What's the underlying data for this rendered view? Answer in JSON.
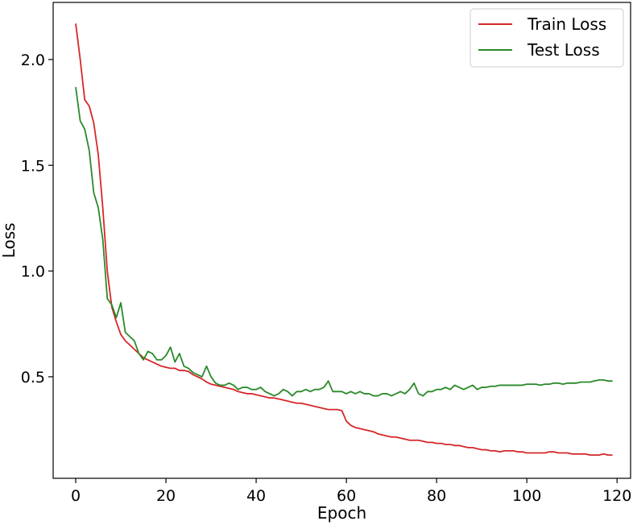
{
  "chart_data": {
    "type": "line",
    "xlabel": "Epoch",
    "ylabel": "Loss",
    "xlim": [
      -5,
      123
    ],
    "ylim": [
      0.02,
      2.27
    ],
    "xticks": [
      0,
      20,
      40,
      60,
      80,
      100,
      120
    ],
    "yticks": [
      0.5,
      1.0,
      1.5,
      2.0
    ],
    "xtick_labels": [
      "0",
      "20",
      "40",
      "60",
      "80",
      "100",
      "120"
    ],
    "ytick_labels": [
      "0.5",
      "1.0",
      "1.5",
      "2.0"
    ],
    "grid": false,
    "legend": {
      "placement": "top-right"
    },
    "series": [
      {
        "name": "Train Loss",
        "color": "#d62728",
        "x": [
          0,
          1,
          2,
          3,
          4,
          5,
          6,
          7,
          8,
          9,
          10,
          11,
          12,
          13,
          14,
          15,
          16,
          17,
          18,
          19,
          20,
          21,
          22,
          23,
          24,
          25,
          26,
          27,
          28,
          29,
          30,
          31,
          32,
          33,
          34,
          35,
          36,
          37,
          38,
          39,
          40,
          41,
          42,
          43,
          44,
          45,
          46,
          47,
          48,
          49,
          50,
          51,
          52,
          53,
          54,
          55,
          56,
          57,
          58,
          59,
          60,
          61,
          62,
          63,
          64,
          65,
          66,
          67,
          68,
          69,
          70,
          71,
          72,
          73,
          74,
          75,
          76,
          77,
          78,
          79,
          80,
          81,
          82,
          83,
          84,
          85,
          86,
          87,
          88,
          89,
          90,
          91,
          92,
          93,
          94,
          95,
          96,
          97,
          98,
          99,
          100,
          101,
          102,
          103,
          104,
          105,
          106,
          107,
          108,
          109,
          110,
          111,
          112,
          113,
          114,
          115,
          116,
          117,
          118,
          119
        ],
        "values": [
          2.17,
          2.0,
          1.81,
          1.78,
          1.7,
          1.55,
          1.3,
          1.0,
          0.83,
          0.76,
          0.7,
          0.67,
          0.65,
          0.63,
          0.61,
          0.59,
          0.58,
          0.57,
          0.56,
          0.55,
          0.545,
          0.54,
          0.54,
          0.53,
          0.53,
          0.525,
          0.51,
          0.5,
          0.49,
          0.475,
          0.465,
          0.46,
          0.455,
          0.45,
          0.445,
          0.44,
          0.43,
          0.425,
          0.42,
          0.42,
          0.415,
          0.41,
          0.405,
          0.4,
          0.4,
          0.395,
          0.39,
          0.385,
          0.38,
          0.375,
          0.375,
          0.37,
          0.365,
          0.36,
          0.355,
          0.35,
          0.345,
          0.345,
          0.345,
          0.34,
          0.29,
          0.27,
          0.26,
          0.255,
          0.25,
          0.245,
          0.24,
          0.23,
          0.225,
          0.22,
          0.215,
          0.215,
          0.21,
          0.205,
          0.2,
          0.2,
          0.2,
          0.195,
          0.19,
          0.19,
          0.185,
          0.185,
          0.18,
          0.18,
          0.175,
          0.175,
          0.17,
          0.165,
          0.165,
          0.16,
          0.155,
          0.155,
          0.15,
          0.15,
          0.145,
          0.15,
          0.15,
          0.15,
          0.145,
          0.145,
          0.14,
          0.14,
          0.14,
          0.14,
          0.14,
          0.145,
          0.145,
          0.14,
          0.14,
          0.14,
          0.135,
          0.135,
          0.135,
          0.135,
          0.13,
          0.13,
          0.13,
          0.135,
          0.13,
          0.13
        ]
      },
      {
        "name": "Test Loss",
        "color": "#2a8a2a",
        "x": [
          0,
          1,
          2,
          3,
          4,
          5,
          6,
          7,
          8,
          9,
          10,
          11,
          12,
          13,
          14,
          15,
          16,
          17,
          18,
          19,
          20,
          21,
          22,
          23,
          24,
          25,
          26,
          27,
          28,
          29,
          30,
          31,
          32,
          33,
          34,
          35,
          36,
          37,
          38,
          39,
          40,
          41,
          42,
          43,
          44,
          45,
          46,
          47,
          48,
          49,
          50,
          51,
          52,
          53,
          54,
          55,
          56,
          57,
          58,
          59,
          60,
          61,
          62,
          63,
          64,
          65,
          66,
          67,
          68,
          69,
          70,
          71,
          72,
          73,
          74,
          75,
          76,
          77,
          78,
          79,
          80,
          81,
          82,
          83,
          84,
          85,
          86,
          87,
          88,
          89,
          90,
          91,
          92,
          93,
          94,
          95,
          96,
          97,
          98,
          99,
          100,
          101,
          102,
          103,
          104,
          105,
          106,
          107,
          108,
          109,
          110,
          111,
          112,
          113,
          114,
          115,
          116,
          117,
          118,
          119
        ],
        "values": [
          1.87,
          1.71,
          1.67,
          1.57,
          1.37,
          1.3,
          1.15,
          0.87,
          0.84,
          0.78,
          0.85,
          0.71,
          0.69,
          0.67,
          0.61,
          0.58,
          0.62,
          0.61,
          0.58,
          0.58,
          0.6,
          0.64,
          0.57,
          0.61,
          0.55,
          0.54,
          0.52,
          0.51,
          0.5,
          0.55,
          0.5,
          0.47,
          0.46,
          0.46,
          0.47,
          0.46,
          0.44,
          0.45,
          0.45,
          0.44,
          0.44,
          0.45,
          0.43,
          0.42,
          0.41,
          0.42,
          0.44,
          0.43,
          0.41,
          0.43,
          0.43,
          0.44,
          0.43,
          0.44,
          0.44,
          0.45,
          0.48,
          0.43,
          0.43,
          0.43,
          0.42,
          0.43,
          0.42,
          0.43,
          0.42,
          0.42,
          0.41,
          0.41,
          0.42,
          0.42,
          0.41,
          0.42,
          0.43,
          0.42,
          0.44,
          0.47,
          0.42,
          0.41,
          0.43,
          0.43,
          0.44,
          0.44,
          0.45,
          0.44,
          0.46,
          0.45,
          0.44,
          0.45,
          0.46,
          0.44,
          0.45,
          0.45,
          0.455,
          0.455,
          0.46,
          0.46,
          0.46,
          0.46,
          0.46,
          0.46,
          0.465,
          0.465,
          0.465,
          0.46,
          0.465,
          0.465,
          0.47,
          0.47,
          0.465,
          0.47,
          0.47,
          0.47,
          0.475,
          0.475,
          0.475,
          0.48,
          0.485,
          0.485,
          0.48,
          0.48
        ]
      }
    ]
  }
}
